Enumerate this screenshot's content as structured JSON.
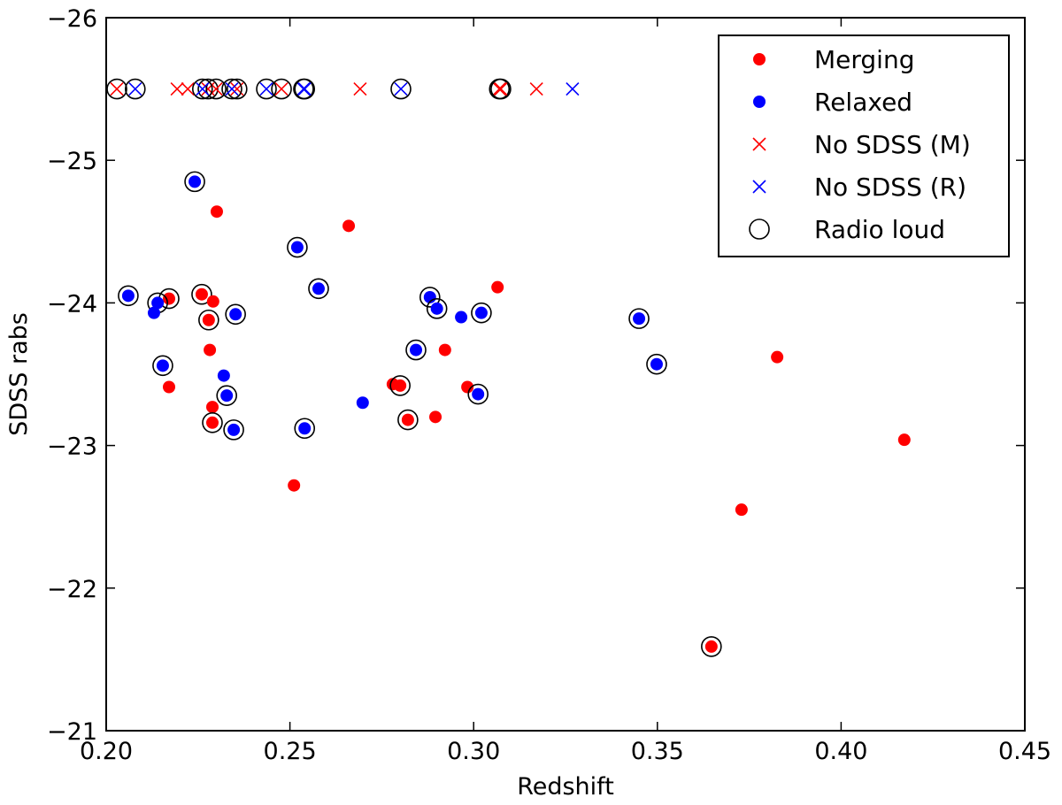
{
  "chart_data": {
    "type": "scatter",
    "xlabel": "Redshift",
    "ylabel": "SDSS rabs",
    "xlim": [
      0.2,
      0.45
    ],
    "ylim": [
      -26,
      -21
    ],
    "y_inverted": true,
    "xticks": [
      "0.20",
      "0.25",
      "0.30",
      "0.35",
      "0.40",
      "0.45"
    ],
    "xtick_values": [
      0.2,
      0.25,
      0.3,
      0.35,
      0.4,
      0.45
    ],
    "yticks": [
      "−26",
      "−25",
      "−24",
      "−23",
      "−22",
      "−21"
    ],
    "ytick_values": [
      -26,
      -25,
      -24,
      -23,
      -22,
      -21
    ],
    "grid": false,
    "legend_placement": "top-right",
    "colors": {
      "merging": "#ff0000",
      "relaxed": "#0000ff",
      "radio": "#000000"
    },
    "series": [
      {
        "name": "Merging",
        "marker": "dot",
        "color": "#ff0000",
        "points": [
          [
            0.2301,
            -24.64,
            0
          ],
          [
            0.266,
            -24.54,
            0
          ],
          [
            0.3065,
            -24.11,
            0
          ],
          [
            0.2171,
            -24.03,
            1
          ],
          [
            0.226,
            -24.06,
            1
          ],
          [
            0.2291,
            -24.01,
            0
          ],
          [
            0.2279,
            -23.88,
            1
          ],
          [
            0.2282,
            -23.67,
            0
          ],
          [
            0.2171,
            -23.41,
            0
          ],
          [
            0.2289,
            -23.27,
            0
          ],
          [
            0.2289,
            -23.16,
            1
          ],
          [
            0.2511,
            -22.72,
            0
          ],
          [
            0.278,
            -23.43,
            0
          ],
          [
            0.28,
            -23.42,
            1
          ],
          [
            0.2922,
            -23.67,
            0
          ],
          [
            0.2983,
            -23.41,
            0
          ],
          [
            0.2896,
            -23.2,
            0
          ],
          [
            0.2821,
            -23.18,
            1
          ],
          [
            0.3826,
            -23.62,
            0
          ],
          [
            0.4172,
            -23.04,
            0
          ],
          [
            0.3729,
            -22.55,
            0
          ],
          [
            0.3647,
            -21.59,
            1
          ]
        ]
      },
      {
        "name": "Relaxed",
        "marker": "dot",
        "color": "#0000ff",
        "points": [
          [
            0.2241,
            -24.85,
            1
          ],
          [
            0.252,
            -24.39,
            1
          ],
          [
            0.2578,
            -24.1,
            1
          ],
          [
            0.206,
            -24.05,
            1
          ],
          [
            0.214,
            -24.0,
            1
          ],
          [
            0.213,
            -23.93,
            0
          ],
          [
            0.2352,
            -23.92,
            1
          ],
          [
            0.2154,
            -23.56,
            1
          ],
          [
            0.232,
            -23.49,
            0
          ],
          [
            0.2328,
            -23.35,
            1
          ],
          [
            0.2347,
            -23.11,
            1
          ],
          [
            0.254,
            -23.12,
            1
          ],
          [
            0.2698,
            -23.3,
            0
          ],
          [
            0.2881,
            -24.04,
            1
          ],
          [
            0.29,
            -23.96,
            1
          ],
          [
            0.2966,
            -23.9,
            0
          ],
          [
            0.3021,
            -23.93,
            1
          ],
          [
            0.2843,
            -23.67,
            1
          ],
          [
            0.3012,
            -23.36,
            1
          ],
          [
            0.345,
            -23.89,
            1
          ],
          [
            0.3498,
            -23.57,
            1
          ]
        ]
      },
      {
        "name": "No SDSS (M)",
        "marker": "x",
        "color": "#ff0000",
        "points": [
          [
            0.2029,
            -25.5,
            1
          ],
          [
            0.2193,
            -25.5,
            0
          ],
          [
            0.2222,
            -25.5,
            0
          ],
          [
            0.2277,
            -25.5,
            1
          ],
          [
            0.2299,
            -25.5,
            1
          ],
          [
            0.2356,
            -25.5,
            1
          ],
          [
            0.2477,
            -25.5,
            1
          ],
          [
            0.2691,
            -25.5,
            0
          ],
          [
            0.307,
            -25.5,
            1
          ],
          [
            0.3074,
            -25.5,
            1
          ],
          [
            0.3171,
            -25.5,
            0
          ]
        ]
      },
      {
        "name": "No SDSS (R)",
        "marker": "x",
        "color": "#0000ff",
        "points": [
          [
            0.2079,
            -25.5,
            1
          ],
          [
            0.2262,
            -25.5,
            1
          ],
          [
            0.2342,
            -25.5,
            1
          ],
          [
            0.2436,
            -25.5,
            1
          ],
          [
            0.2537,
            -25.5,
            1
          ],
          [
            0.254,
            -25.5,
            1
          ],
          [
            0.2802,
            -25.5,
            1
          ],
          [
            0.3269,
            -25.5,
            0
          ]
        ]
      }
    ],
    "legend": [
      {
        "label": "Merging",
        "marker": "dot",
        "color": "#ff0000"
      },
      {
        "label": "Relaxed",
        "marker": "dot",
        "color": "#0000ff"
      },
      {
        "label": "No SDSS (M)",
        "marker": "x",
        "color": "#ff0000"
      },
      {
        "label": "No SDSS (R)",
        "marker": "x",
        "color": "#0000ff"
      },
      {
        "label": "Radio loud",
        "marker": "open-circle",
        "color": "#000000"
      }
    ]
  }
}
